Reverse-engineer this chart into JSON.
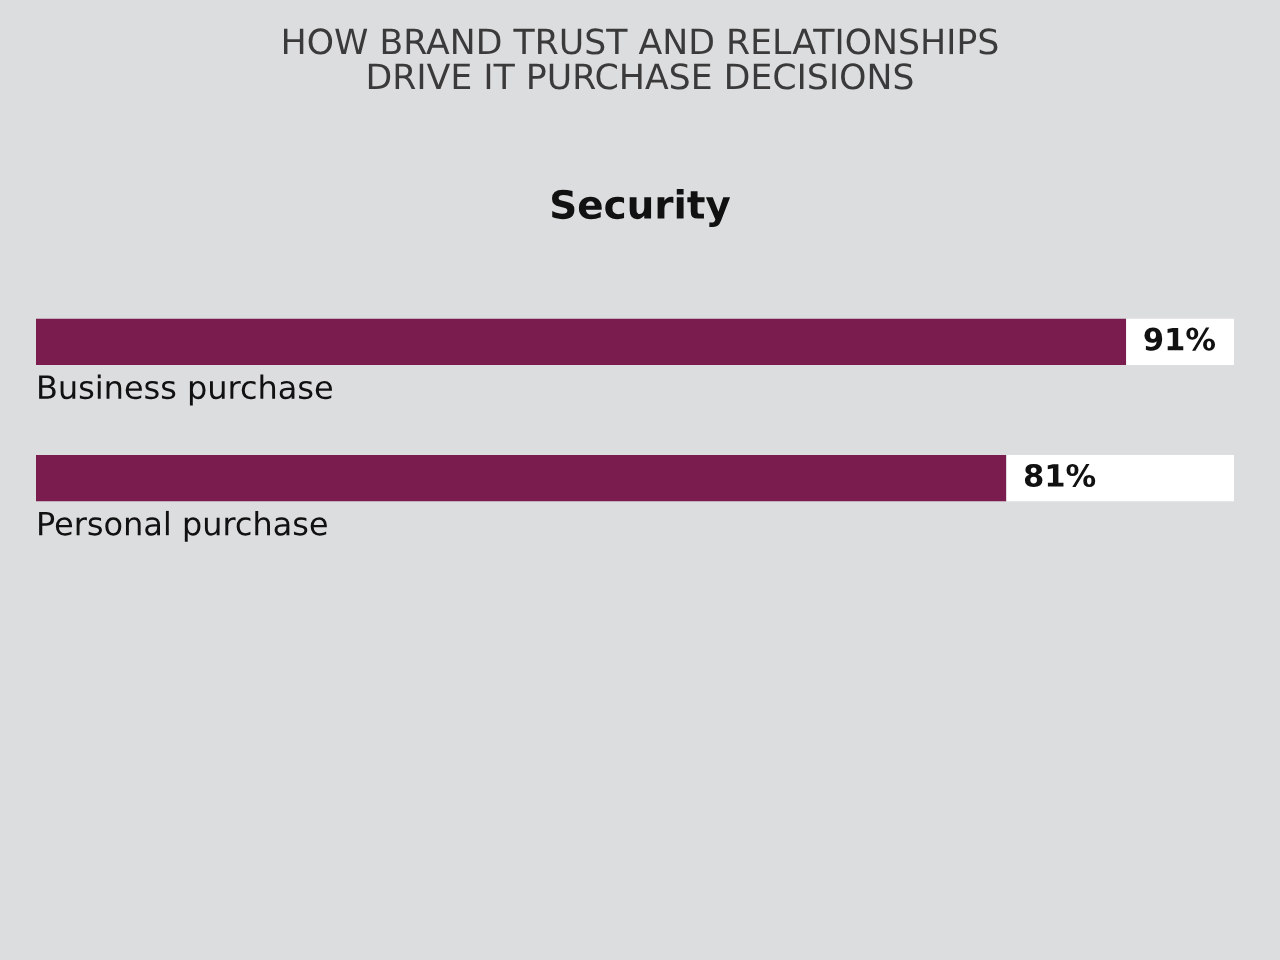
{
  "chart_data": {
    "type": "bar",
    "orientation": "horizontal",
    "stacked": true,
    "title": "HOW BRAND TRUST AND RELATIONSHIPS\nDRIVE IT PURCHASE DECISIONS",
    "subtitle": "Security",
    "categories": [
      "Business purchase",
      "Personal purchase"
    ],
    "series": [
      {
        "color": "#7a1d4e",
        "values": [
          91,
          81
        ],
        "value_labels": [
          "91%",
          "81%"
        ]
      },
      {
        "color": "#ffffff",
        "values": [
          9,
          19
        ]
      }
    ],
    "tick_labels": "y"
  }
}
